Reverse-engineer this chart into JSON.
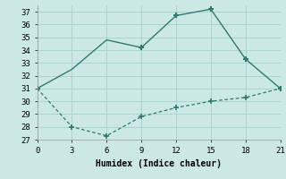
{
  "line1_x": [
    0,
    3,
    6,
    9,
    12,
    15,
    18,
    21
  ],
  "line1_y": [
    31,
    32.5,
    34.8,
    34.2,
    36.7,
    37.2,
    33.3,
    31.0
  ],
  "line1_marker_x": [
    0,
    9,
    12,
    15,
    18,
    21
  ],
  "line1_marker_y": [
    31,
    34.2,
    36.7,
    37.2,
    33.3,
    31.0
  ],
  "line2_x": [
    0,
    3,
    6,
    9,
    12,
    15,
    18,
    21
  ],
  "line2_y": [
    31,
    28.0,
    27.3,
    28.8,
    29.5,
    30.0,
    30.3,
    31.0
  ],
  "line_color": "#2d7a6e",
  "bg_color": "#cce8e5",
  "grid_color": "#aad4d0",
  "xlabel": "Humidex (Indice chaleur)",
  "xlim": [
    0,
    21
  ],
  "ylim": [
    27,
    37.5
  ],
  "xticks": [
    0,
    3,
    6,
    9,
    12,
    15,
    18,
    21
  ],
  "yticks": [
    27,
    28,
    29,
    30,
    31,
    32,
    33,
    34,
    35,
    36,
    37
  ],
  "font_family": "monospace"
}
